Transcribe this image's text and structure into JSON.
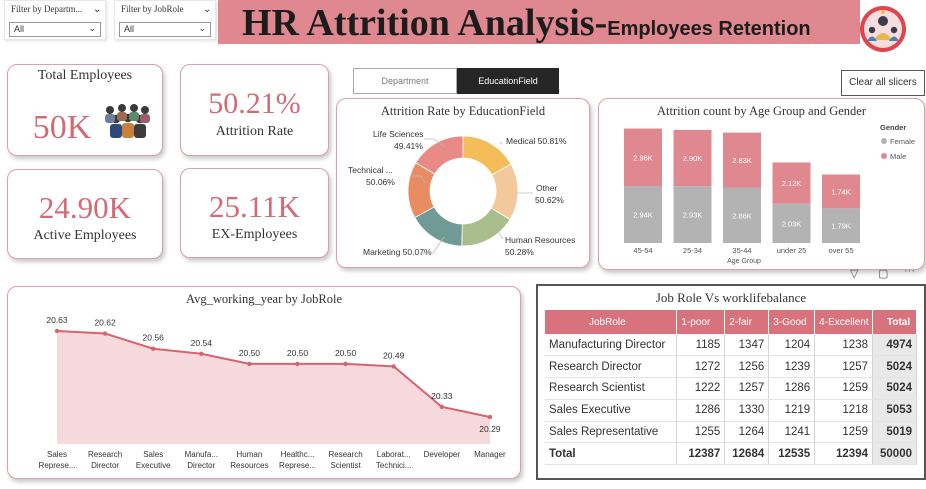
{
  "filters": [
    {
      "label": "Filter by Departm...",
      "value": "All"
    },
    {
      "label": "Filter by JobRole",
      "value": "All"
    }
  ],
  "banner": {
    "title": "HR Attrition Analysis-",
    "subtitle": "Employees Retention",
    "bg_color": "#e0888f"
  },
  "kpis": {
    "total_employees": {
      "label": "Total Employees",
      "value": "50K"
    },
    "attrition_rate": {
      "label": "Attrition Rate",
      "value": "50.21%"
    },
    "active_employees": {
      "label": "Active Employees",
      "value": "24.90K"
    },
    "ex_employees": {
      "label": "EX-Employees",
      "value": "25.11K"
    }
  },
  "tabs": {
    "department": "Department",
    "education_field": "EducationField"
  },
  "clear_slicers": "Clear all slicers",
  "colors": {
    "accent": "#d46a76",
    "pink_bar": "#e0888f",
    "gray_bar": "#b3b3b3"
  },
  "chart_data": [
    {
      "type": "pie",
      "title": "Attrition Rate by EducationField",
      "categories": [
        "Medical",
        "Other",
        "Human Resources",
        "Marketing",
        "Technical ...",
        "Life Sciences"
      ],
      "values": [
        50.81,
        50.62,
        50.28,
        50.07,
        50.06,
        49.41
      ],
      "display": [
        "Medical 50.81%",
        "Other",
        "50.62%",
        "Human Resources",
        "50.28%",
        "Marketing 50.07%",
        "Technical ...",
        "50.06%",
        "Life Sciences",
        "49.41%"
      ],
      "colors": [
        "#f4bd5a",
        "#f3c99c",
        "#a9bd8d",
        "#6f9a95",
        "#ea8c62",
        "#ea8a86"
      ]
    },
    {
      "type": "bar",
      "title": "Attrition count by Age Group and Gender",
      "categories": [
        "45-54",
        "25-34",
        "35-44",
        "under 25",
        "over 55"
      ],
      "series": [
        {
          "name": "Female",
          "values": [
            2.94,
            2.93,
            2.86,
            2.03,
            1.79
          ],
          "labels": [
            "2.94K",
            "2.93K",
            "2.86K",
            "2.03K",
            "1.79K"
          ]
        },
        {
          "name": "Male",
          "values": [
            2.96,
            2.9,
            2.83,
            2.12,
            1.74
          ],
          "labels": [
            "2.96K",
            "2.90K",
            "2.83K",
            "2.12K",
            "1.74K"
          ]
        }
      ],
      "xlabel": "Age Group",
      "legend_title": "Gender",
      "stacked": true,
      "ylim": [
        0,
        6
      ]
    },
    {
      "type": "area",
      "title": "Avg_working_year by JobRole",
      "categories": [
        "Sales Represe...",
        "Research Director",
        "Sales Executive",
        "Manufa... Director",
        "Human Resources",
        "Healthc... Represe...",
        "Research Scientist",
        "Laborat... Technici...",
        "Developer",
        "Manager"
      ],
      "values": [
        20.63,
        20.62,
        20.56,
        20.54,
        20.5,
        20.5,
        20.5,
        20.49,
        20.33,
        20.29
      ],
      "labels": [
        "20.63",
        "20.62",
        "20.56",
        "20.54",
        "20.50",
        "20.50",
        "20.50",
        "20.49",
        "20.33",
        "20.29"
      ],
      "ylim": [
        20.2,
        20.7
      ]
    }
  ],
  "table": {
    "title": "Job Role Vs worklifebalance",
    "headers": [
      "JobRole",
      "1-poor",
      "2-fair",
      "3-Good",
      "4-Excellent",
      "Total"
    ],
    "rows": [
      [
        "Manufacturing Director",
        "1185",
        "1347",
        "1204",
        "1238",
        "4974"
      ],
      [
        "Research Director",
        "1272",
        "1256",
        "1239",
        "1257",
        "5024"
      ],
      [
        "Research Scientist",
        "1222",
        "1257",
        "1286",
        "1259",
        "5024"
      ],
      [
        "Sales Executive",
        "1286",
        "1330",
        "1219",
        "1218",
        "5053"
      ],
      [
        "Sales Representative",
        "1255",
        "1264",
        "1241",
        "1259",
        "5019"
      ]
    ],
    "total": [
      "Total",
      "12387",
      "12684",
      "12535",
      "12394",
      "50000"
    ]
  }
}
